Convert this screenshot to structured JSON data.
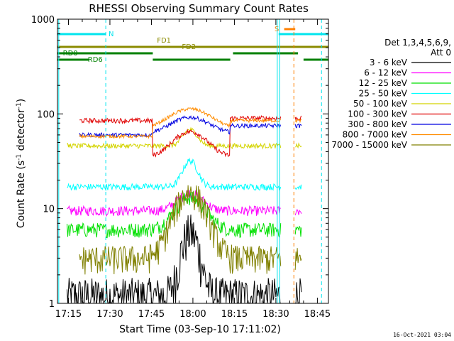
{
  "chart_data": {
    "type": "line",
    "title": "RHESSI Observing Summary Count Rates",
    "xlabel": "Start Time (03-Sep-10 17:11:02)",
    "ylabel": "Count Rate (s⁻¹ detector⁻¹)",
    "ylabel_main": "Count Rate (s",
    "ylabel_sup1": "-1",
    "ylabel_mid": " detector",
    "ylabel_sup2": "-1",
    "ylabel_end": ")",
    "y_scale": "log",
    "ylim": [
      1,
      1000
    ],
    "x_range_minutes": [
      0,
      1080,
      2940
    ],
    "x_range": [
      "17:11:02",
      "18:49:00"
    ],
    "x_ticks": [
      "17:15",
      "17:30",
      "17:45",
      "18:00",
      "18:15",
      "18:30",
      "18:45"
    ],
    "x_tick_minutes": [
      "17:15",
      "17:30",
      "17:45",
      "18:00",
      "18:15",
      "18:30",
      "18:45"
    ],
    "y_ticks": [
      "1",
      "10",
      "100",
      "1000"
    ],
    "legend_header_1": "Det 1,3,4,5,6,9,",
    "legend_header_2": "Att 0",
    "legend_placement": "right",
    "timestamp": "16-Oct-2021 03:04",
    "flags": [
      {
        "label": "N",
        "color": "#00e5ee"
      },
      {
        "label": "S",
        "color": "#ff8000"
      },
      {
        "label": "FD1",
        "color": "#8b8b00"
      },
      {
        "label": "FD2",
        "color": "#8b8b00"
      },
      {
        "label": "RD0",
        "color": "#008000"
      },
      {
        "label": "RD6",
        "color": "#008000"
      }
    ],
    "series": [
      {
        "name": "3 - 6 keV",
        "color": "#000000"
      },
      {
        "name": "6 - 12 keV",
        "color": "#ff00ff"
      },
      {
        "name": "12 - 25 keV",
        "color": "#00e000"
      },
      {
        "name": "25 - 50 keV",
        "color": "#00ffff"
      },
      {
        "name": "50 - 100 keV",
        "color": "#d4d400"
      },
      {
        "name": "100 - 300 keV",
        "color": "#e00000"
      },
      {
        "name": "300 - 800 keV",
        "color": "#0000e0"
      },
      {
        "name": "800 - 7000 keV",
        "color": "#ff8c00"
      },
      {
        "name": "7000 - 15000 keV",
        "color": "#808000"
      }
    ]
  }
}
